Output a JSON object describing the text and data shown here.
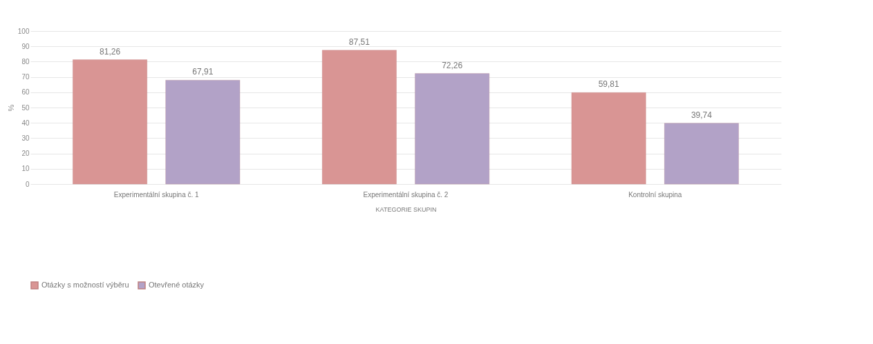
{
  "chart_data": {
    "type": "bar",
    "xlabel": "KATEGORIE SKUPIN",
    "ylabel": "%",
    "categories": [
      "Experimentální skupina č. 1",
      "Experimentální skupina č. 2",
      "Kontrolní skupina"
    ],
    "series": [
      {
        "name": "Otázky s možností výběru",
        "color": "#d99594",
        "values": [
          81.26,
          87.51,
          59.81
        ],
        "value_labels": [
          "81,26",
          "87,51",
          "59,81"
        ]
      },
      {
        "name": "Otevřené otázky",
        "color": "#b2a2c7",
        "values": [
          67.91,
          72.26,
          39.74
        ],
        "value_labels": [
          "67,91",
          "72,26",
          "39,74"
        ]
      }
    ],
    "ylim": [
      0,
      100
    ],
    "yticks": [
      0,
      10,
      20,
      30,
      40,
      50,
      60,
      70,
      80,
      90,
      100
    ],
    "grid": "y",
    "legend": "bottom"
  }
}
